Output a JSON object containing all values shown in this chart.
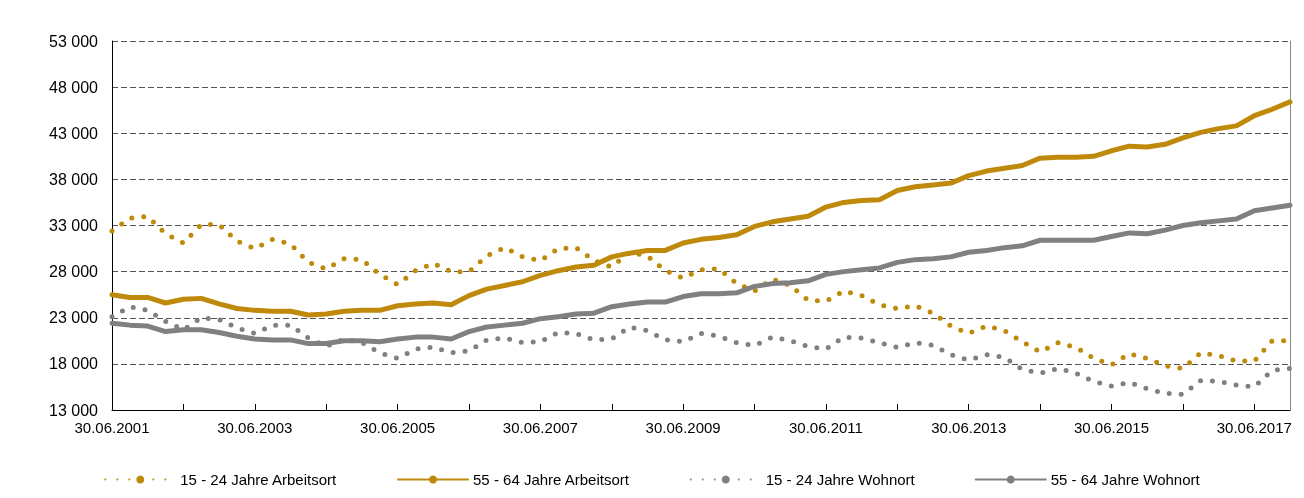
{
  "chart_data": {
    "type": "line",
    "categories": [
      "30.06.2001",
      null,
      null,
      null,
      null,
      null,
      null,
      null,
      "30.06.2003",
      null,
      null,
      null,
      null,
      null,
      null,
      null,
      "30.06.2005",
      null,
      null,
      null,
      null,
      null,
      null,
      null,
      "30.06.2007",
      null,
      null,
      null,
      null,
      null,
      null,
      null,
      "30.06.2009",
      null,
      null,
      null,
      null,
      null,
      null,
      null,
      "30.06.2011",
      null,
      null,
      null,
      null,
      null,
      null,
      null,
      "30.06.2013",
      null,
      null,
      null,
      null,
      null,
      null,
      null,
      "30.06.2015",
      null,
      null,
      null,
      null,
      null,
      null,
      null,
      "30.06.2017",
      null,
      null
    ],
    "series": [
      {
        "name": "15 - 24 Jahre Arbeitsort",
        "color": "#bf8a0b",
        "line_style": "dotted",
        "values": [
          32400,
          33800,
          34000,
          32100,
          31100,
          33100,
          33100,
          31300,
          30500,
          31500,
          31000,
          29000,
          28300,
          29400,
          29300,
          27700,
          26600,
          28100,
          28900,
          28000,
          28000,
          29700,
          30600,
          29600,
          29200,
          30500,
          30600,
          29200,
          28500,
          30100,
          29700,
          28100,
          27300,
          28200,
          28300,
          26700,
          25900,
          27200,
          26500,
          24900,
          24800,
          25900,
          25400,
          24400,
          24000,
          24300,
          23500,
          22100,
          21300,
          22100,
          21600,
          20400,
          19300,
          20300,
          19800,
          18600,
          17900,
          19100,
          18600,
          17800,
          17500,
          19200,
          18900,
          18300,
          18300,
          20500,
          20500
        ]
      },
      {
        "name": "55 - 64 Jahre Arbeitsort",
        "color": "#bf8a0b",
        "line_style": "solid",
        "values": [
          25500,
          25200,
          25200,
          24600,
          25000,
          25100,
          24500,
          24000,
          23800,
          23700,
          23700,
          23300,
          23400,
          23700,
          23800,
          23800,
          24300,
          24500,
          24600,
          24400,
          25400,
          26100,
          26500,
          26900,
          27600,
          28100,
          28500,
          28700,
          29600,
          30000,
          30300,
          30300,
          31100,
          31500,
          31700,
          32000,
          32900,
          33400,
          33700,
          34000,
          35000,
          35500,
          35700,
          35800,
          36800,
          37200,
          37400,
          37600,
          38400,
          38900,
          39200,
          39500,
          40300,
          40400,
          40400,
          40500,
          41100,
          41600,
          41500,
          41800,
          42500,
          43100,
          43500,
          43800,
          44900,
          45600,
          46400
        ]
      },
      {
        "name": "15 - 24 Jahre Wohnort",
        "color": "#808080",
        "line_style": "dotted",
        "values": [
          23100,
          24200,
          23800,
          22600,
          21700,
          23000,
          22800,
          21900,
          21300,
          22200,
          22200,
          20800,
          19900,
          20700,
          20300,
          19200,
          18600,
          19600,
          19800,
          19200,
          19400,
          20600,
          20800,
          20300,
          20400,
          21400,
          21300,
          20600,
          20700,
          22000,
          21600,
          20600,
          20400,
          21300,
          21000,
          20300,
          20000,
          20900,
          20500,
          19900,
          19600,
          20900,
          20800,
          20300,
          19800,
          20300,
          20000,
          19000,
          18400,
          19000,
          18700,
          17400,
          17000,
          17500,
          17000,
          16100,
          15600,
          16000,
          15300,
          14800,
          14700,
          16200,
          16100,
          15700,
          15500,
          17300,
          17500
        ]
      },
      {
        "name": "55 - 64 Jahre Wohnort",
        "color": "#808080",
        "line_style": "solid",
        "values": [
          22400,
          22200,
          22100,
          21500,
          21700,
          21700,
          21400,
          21000,
          20700,
          20600,
          20600,
          20200,
          20200,
          20500,
          20500,
          20400,
          20700,
          20900,
          20900,
          20700,
          21500,
          22000,
          22200,
          22400,
          22900,
          23100,
          23400,
          23500,
          24200,
          24500,
          24700,
          24700,
          25300,
          25600,
          25600,
          25700,
          26400,
          26700,
          26800,
          27000,
          27700,
          28000,
          28200,
          28400,
          29000,
          29300,
          29400,
          29600,
          30100,
          30300,
          30600,
          30800,
          31400,
          31400,
          31400,
          31400,
          31800,
          32200,
          32100,
          32500,
          33000,
          33300,
          33500,
          33700,
          34600,
          34900,
          35200
        ]
      }
    ],
    "ylim": [
      13000,
      53000
    ],
    "yticks": [
      13000,
      18000,
      23000,
      28000,
      33000,
      38000,
      43000,
      48000,
      53000
    ],
    "grid": "y",
    "legend": "bottom",
    "marker": "none"
  }
}
